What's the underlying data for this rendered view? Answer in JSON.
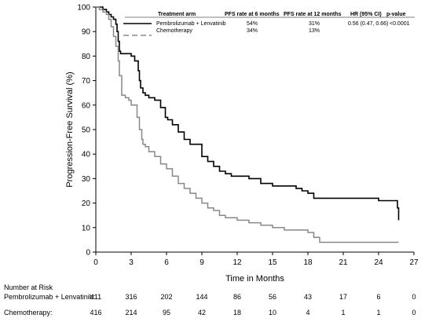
{
  "chart_data": {
    "type": "line",
    "xlabel": "Time in Months",
    "ylabel": "Progression-Free Survival (%)",
    "xlim": [
      0,
      27
    ],
    "ylim": [
      0,
      100
    ],
    "xticks": [
      "0",
      "3",
      "6",
      "9",
      "12",
      "15",
      "18",
      "21",
      "24",
      "27"
    ],
    "yticks": [
      "0",
      "10",
      "20",
      "30",
      "40",
      "50",
      "60",
      "70",
      "80",
      "90",
      "100"
    ],
    "grid": false,
    "legend_position": "top-right",
    "legend_headers": [
      "Treatment arm",
      "PFS rate at 6 months",
      "PFS rate at 12 months",
      "HR (95% CI)",
      "p-value"
    ],
    "series": [
      {
        "name": "Pembrolizumab + Lenvatinib",
        "color": "#000000",
        "style": "solid",
        "pfs6": "54%",
        "pfs12": "31%",
        "hr": "0.56 (0.47, 0.66)",
        "p": "<0.0001",
        "x": [
          0,
          0.3,
          0.6,
          0.9,
          1.1,
          1.3,
          1.5,
          1.7,
          1.8,
          1.9,
          2.0,
          2.1,
          2.3,
          3.0,
          3.3,
          3.6,
          3.7,
          3.8,
          4.0,
          4.2,
          4.5,
          5.0,
          5.5,
          5.9,
          6.1,
          6.5,
          7.0,
          7.5,
          8.0,
          9.0,
          9.5,
          10.0,
          10.5,
          11.0,
          11.5,
          12.0,
          13.0,
          14.0,
          15.0,
          17.0,
          17.5,
          18.0,
          18.5,
          24.0,
          25.5,
          25.6,
          25.7
        ],
        "y": [
          100,
          100,
          99,
          98,
          97,
          96,
          95,
          93,
          90,
          86,
          82,
          81,
          81,
          80,
          78,
          74,
          70,
          67,
          65,
          64,
          63,
          62,
          59,
          55,
          54,
          52,
          49,
          46,
          44,
          39,
          37,
          35,
          33,
          32,
          31,
          31,
          30,
          28,
          27,
          26,
          25,
          24,
          22,
          21,
          21,
          18,
          13
        ]
      },
      {
        "name": "Chemotherapy",
        "color": "#888888",
        "style": "solid",
        "pfs6": "34%",
        "pfs12": "13%",
        "hr": "",
        "p": "",
        "x": [
          0,
          0.3,
          0.6,
          0.9,
          1.1,
          1.3,
          1.5,
          1.7,
          1.9,
          2.0,
          2.2,
          2.5,
          2.8,
          3.0,
          3.5,
          3.7,
          3.9,
          4.0,
          4.2,
          4.5,
          5.0,
          5.5,
          6.0,
          6.5,
          7.0,
          7.5,
          8.0,
          8.5,
          9.0,
          9.5,
          10.0,
          10.5,
          11.0,
          12.0,
          13.0,
          14.0,
          15.0,
          16.0,
          18.0,
          18.5,
          19.0,
          25.7
        ],
        "y": [
          100,
          99,
          98,
          97,
          95,
          92,
          88,
          84,
          78,
          72,
          64,
          63,
          62,
          60,
          55,
          50,
          46,
          44,
          43,
          41,
          39,
          36,
          34,
          31,
          28,
          26,
          24,
          22,
          20,
          18,
          17,
          15,
          14,
          13,
          12,
          11,
          10,
          9,
          8,
          6,
          4,
          4
        ]
      }
    ],
    "risk_table": {
      "header": "Number at Risk",
      "times": [
        "0",
        "3",
        "6",
        "9",
        "12",
        "15",
        "18",
        "21",
        "24",
        "27"
      ],
      "rows": [
        {
          "label": "Pembrolizumab + Lenvatinib:",
          "values": [
            "411",
            "316",
            "202",
            "144",
            "86",
            "56",
            "43",
            "17",
            "6",
            "0"
          ]
        },
        {
          "label": "Chemotherapy:",
          "values": [
            "416",
            "214",
            "95",
            "42",
            "18",
            "10",
            "4",
            "1",
            "1",
            "0"
          ]
        }
      ]
    }
  }
}
